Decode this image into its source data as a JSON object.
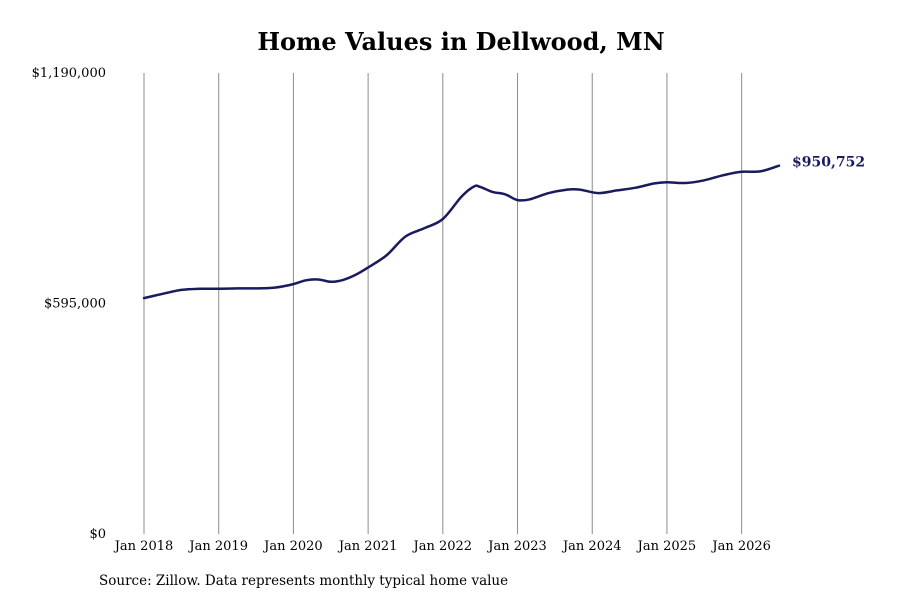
{
  "colors": {
    "line": "#1a1a5e",
    "grid": "#8c8c8c"
  },
  "chart_data": {
    "type": "line",
    "title": "Home Values in Dellwood, MN",
    "xlabel": "",
    "ylabel": "",
    "ylim": [
      0,
      1190000
    ],
    "xlim": [
      "2018-01",
      "2026-07"
    ],
    "y_ticks": [
      {
        "value": 0,
        "label": "$0"
      },
      {
        "value": 595000,
        "label": "$595,000"
      },
      {
        "value": 1190000,
        "label": "$1,190,000"
      }
    ],
    "x_ticks": [
      {
        "value": "2018-01",
        "label": "Jan 2018"
      },
      {
        "value": "2019-01",
        "label": "Jan 2019"
      },
      {
        "value": "2020-01",
        "label": "Jan 2020"
      },
      {
        "value": "2021-01",
        "label": "Jan 2021"
      },
      {
        "value": "2022-01",
        "label": "Jan 2022"
      },
      {
        "value": "2023-01",
        "label": "Jan 2023"
      },
      {
        "value": "2024-01",
        "label": "Jan 2024"
      },
      {
        "value": "2025-01",
        "label": "Jan 2025"
      },
      {
        "value": "2026-01",
        "label": "Jan 2026"
      }
    ],
    "grid": {
      "vertical": true,
      "horizontal": false
    },
    "end_label": "$950,752",
    "series": [
      {
        "points": [
          {
            "x": "2018-01",
            "y": 609000
          },
          {
            "x": "2018-04",
            "y": 620000
          },
          {
            "x": "2018-07",
            "y": 630000
          },
          {
            "x": "2018-10",
            "y": 633000
          },
          {
            "x": "2019-01",
            "y": 633000
          },
          {
            "x": "2019-04",
            "y": 634000
          },
          {
            "x": "2019-07",
            "y": 634000
          },
          {
            "x": "2019-10",
            "y": 636000
          },
          {
            "x": "2020-01",
            "y": 645000
          },
          {
            "x": "2020-03",
            "y": 655000
          },
          {
            "x": "2020-05",
            "y": 657000
          },
          {
            "x": "2020-07",
            "y": 651000
          },
          {
            "x": "2020-09",
            "y": 656000
          },
          {
            "x": "2020-11",
            "y": 669000
          },
          {
            "x": "2021-01",
            "y": 688000
          },
          {
            "x": "2021-04",
            "y": 720000
          },
          {
            "x": "2021-07",
            "y": 768000
          },
          {
            "x": "2021-10",
            "y": 789000
          },
          {
            "x": "2022-01",
            "y": 813000
          },
          {
            "x": "2022-04",
            "y": 871000
          },
          {
            "x": "2022-06",
            "y": 897000
          },
          {
            "x": "2022-07",
            "y": 896000
          },
          {
            "x": "2022-09",
            "y": 883000
          },
          {
            "x": "2022-11",
            "y": 877000
          },
          {
            "x": "2023-01",
            "y": 862000
          },
          {
            "x": "2023-03",
            "y": 864000
          },
          {
            "x": "2023-06",
            "y": 880000
          },
          {
            "x": "2023-09",
            "y": 889000
          },
          {
            "x": "2023-11",
            "y": 889000
          },
          {
            "x": "2024-02",
            "y": 880000
          },
          {
            "x": "2024-05",
            "y": 887000
          },
          {
            "x": "2024-08",
            "y": 894000
          },
          {
            "x": "2024-11",
            "y": 905000
          },
          {
            "x": "2025-01",
            "y": 908000
          },
          {
            "x": "2025-04",
            "y": 906000
          },
          {
            "x": "2025-07",
            "y": 913000
          },
          {
            "x": "2025-10",
            "y": 926000
          },
          {
            "x": "2026-01",
            "y": 935000
          },
          {
            "x": "2026-04",
            "y": 936000
          },
          {
            "x": "2026-07",
            "y": 950752
          }
        ]
      }
    ]
  },
  "footer": {
    "source": "Source: Zillow. Data represents monthly typical home value"
  }
}
